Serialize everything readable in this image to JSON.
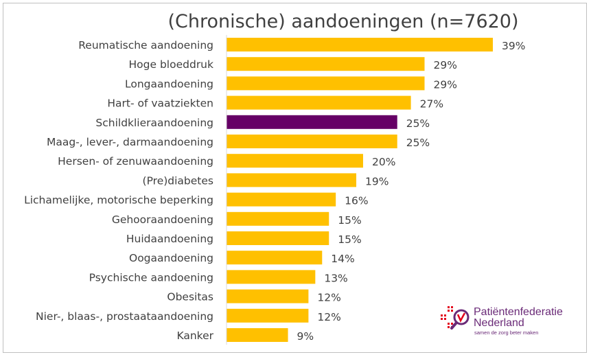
{
  "chart_data": {
    "type": "bar",
    "orientation": "horizontal",
    "title": "(Chronische) aandoeningen (n=7620)",
    "categories": [
      "Reumatische aandoening",
      "Hoge bloeddruk",
      "Longaandoening",
      "Hart- of vaatziekten",
      "Schildklieraandoening",
      "Maag-, lever-, darmaandoening",
      "Hersen- of zenuwaandoening",
      "(Pre)diabetes",
      "Lichamelijke, motorische beperking",
      "Gehooraandoening",
      "Huidaandoening",
      "Oogaandoening",
      "Psychische aandoening",
      "Obesitas",
      "Nier-, blaas-, prostaataandoening",
      "Kanker"
    ],
    "values": [
      39,
      29,
      29,
      27,
      25,
      25,
      20,
      19,
      16,
      15,
      15,
      14,
      13,
      12,
      12,
      9
    ],
    "value_labels": [
      "39%",
      "29%",
      "29%",
      "27%",
      "25%",
      "25%",
      "20%",
      "19%",
      "16%",
      "15%",
      "15%",
      "14%",
      "13%",
      "12%",
      "12%",
      "9%"
    ],
    "highlight_category": "Schildklieraandoening",
    "colors": {
      "bar": "#ffc000",
      "highlight": "#660066",
      "text": "#404040"
    },
    "xlim": [
      0,
      39
    ],
    "grid": false
  },
  "logo": {
    "name": "patientenfederatie-logo",
    "line1": "Patiëntenfederatie",
    "line2": "Nederland",
    "tagline": "samen de zorg beter maken"
  }
}
